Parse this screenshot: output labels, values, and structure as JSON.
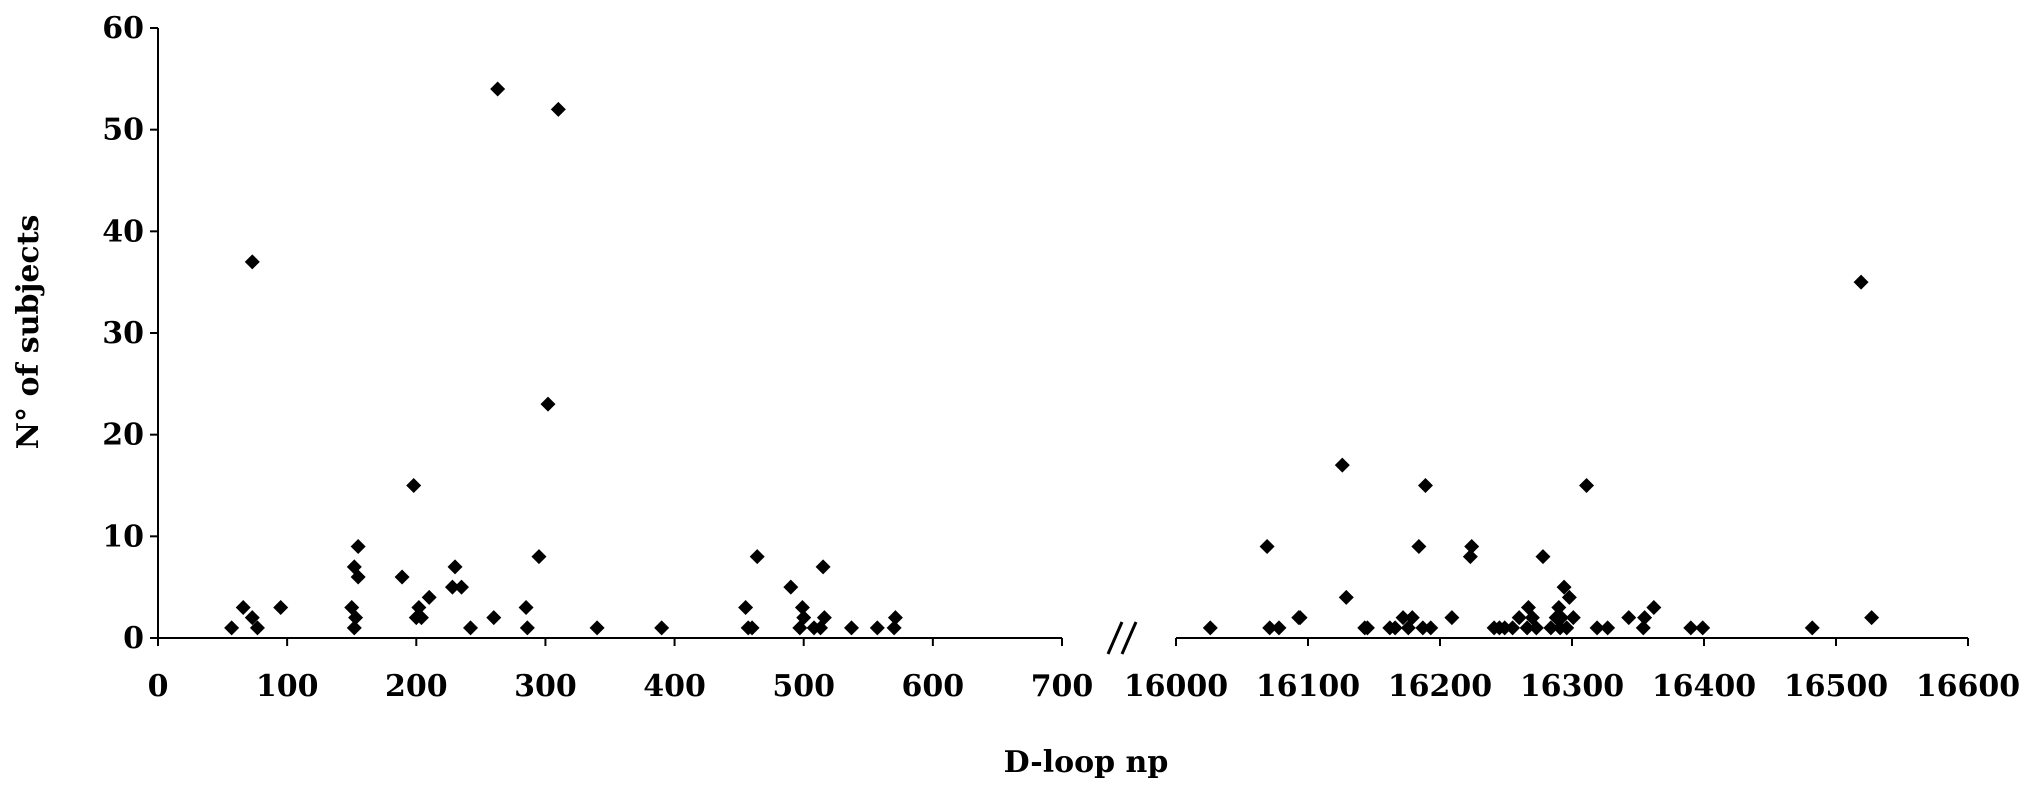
{
  "chart_data": {
    "type": "scatter",
    "title": "",
    "xlabel": "D-loop np",
    "ylabel": "N° of subjects",
    "ylim": [
      0,
      60
    ],
    "yticks": [
      0,
      10,
      20,
      30,
      40,
      50,
      60
    ],
    "x_axis_break": true,
    "x_segments": [
      {
        "xlim": [
          0,
          700
        ],
        "xticks": [
          0,
          100,
          200,
          300,
          400,
          500,
          600,
          700
        ]
      },
      {
        "xlim": [
          16000,
          16600
        ],
        "xticks": [
          16000,
          16100,
          16200,
          16300,
          16400,
          16500,
          16600
        ]
      }
    ],
    "grid": false,
    "legend": "none",
    "marker": "diamond",
    "marker_color": "#000000",
    "series": [
      {
        "points": [
          [
            57,
            1
          ],
          [
            66,
            3
          ],
          [
            73,
            2
          ],
          [
            73,
            37
          ],
          [
            77,
            1
          ],
          [
            95,
            3
          ],
          [
            150,
            3
          ],
          [
            152,
            7
          ],
          [
            152,
            1
          ],
          [
            153,
            2
          ],
          [
            155,
            9
          ],
          [
            155,
            6
          ],
          [
            189,
            6
          ],
          [
            198,
            15
          ],
          [
            200,
            2
          ],
          [
            202,
            3
          ],
          [
            204,
            2
          ],
          [
            210,
            4
          ],
          [
            228,
            5
          ],
          [
            230,
            7
          ],
          [
            235,
            5
          ],
          [
            242,
            1
          ],
          [
            260,
            2
          ],
          [
            263,
            54
          ],
          [
            285,
            3
          ],
          [
            286,
            1
          ],
          [
            295,
            8
          ],
          [
            302,
            23
          ],
          [
            310,
            52
          ],
          [
            340,
            1
          ],
          [
            390,
            1
          ],
          [
            455,
            3
          ],
          [
            457,
            1
          ],
          [
            460,
            1
          ],
          [
            464,
            8
          ],
          [
            490,
            5
          ],
          [
            497,
            1
          ],
          [
            499,
            3
          ],
          [
            500,
            2
          ],
          [
            508,
            1
          ],
          [
            513,
            1
          ],
          [
            515,
            7
          ],
          [
            516,
            2
          ],
          [
            537,
            1
          ],
          [
            557,
            1
          ],
          [
            570,
            1
          ],
          [
            571,
            2
          ],
          [
            16026,
            1
          ],
          [
            16069,
            9
          ],
          [
            16071,
            1
          ],
          [
            16078,
            1
          ],
          [
            16093,
            2
          ],
          [
            16094,
            2
          ],
          [
            16126,
            17
          ],
          [
            16129,
            4
          ],
          [
            16143,
            1
          ],
          [
            16145,
            1
          ],
          [
            16162,
            1
          ],
          [
            16166,
            1
          ],
          [
            16172,
            2
          ],
          [
            16176,
            1
          ],
          [
            16179,
            2
          ],
          [
            16184,
            9
          ],
          [
            16187,
            1
          ],
          [
            16189,
            15
          ],
          [
            16193,
            1
          ],
          [
            16209,
            2
          ],
          [
            16223,
            8
          ],
          [
            16224,
            9
          ],
          [
            16241,
            1
          ],
          [
            16245,
            1
          ],
          [
            16249,
            1
          ],
          [
            16255,
            1
          ],
          [
            16260,
            2
          ],
          [
            16266,
            1
          ],
          [
            16267,
            3
          ],
          [
            16270,
            2
          ],
          [
            16273,
            1
          ],
          [
            16278,
            8
          ],
          [
            16284,
            1
          ],
          [
            16288,
            2
          ],
          [
            16290,
            3
          ],
          [
            16291,
            1
          ],
          [
            16292,
            2
          ],
          [
            16294,
            5
          ],
          [
            16296,
            1
          ],
          [
            16298,
            4
          ],
          [
            16301,
            2
          ],
          [
            16311,
            15
          ],
          [
            16319,
            1
          ],
          [
            16327,
            1
          ],
          [
            16343,
            2
          ],
          [
            16354,
            1
          ],
          [
            16355,
            2
          ],
          [
            16362,
            3
          ],
          [
            16390,
            1
          ],
          [
            16399,
            1
          ],
          [
            16482,
            1
          ],
          [
            16519,
            35
          ],
          [
            16527,
            2
          ]
        ]
      }
    ]
  }
}
